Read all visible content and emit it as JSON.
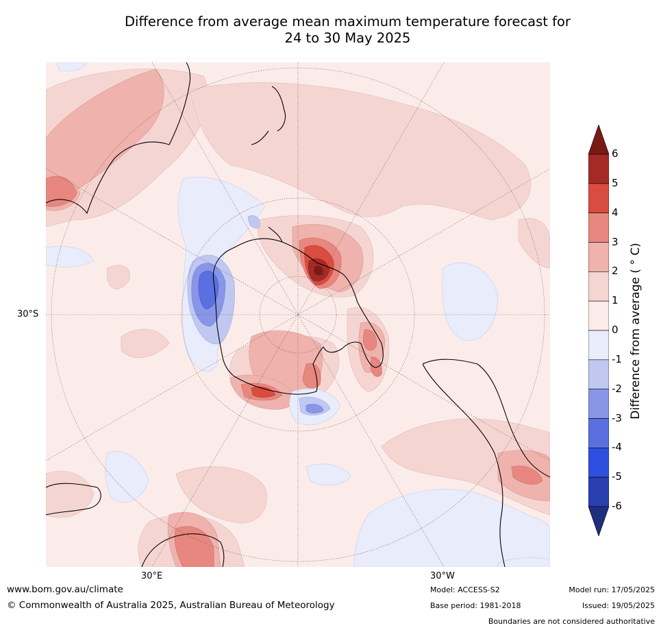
{
  "title": {
    "line1": "Difference from average mean maximum temperature forecast for",
    "line2": "24 to 30 May 2025"
  },
  "map": {
    "projection": "south polar stereographic",
    "labels": {
      "lat": "30°S",
      "lon_east": "30°E",
      "lon_west": "30°W"
    }
  },
  "colorbar": {
    "label": "Difference from average (°C)",
    "label_display": "Difference from average ( ° C)",
    "ticks": [
      "6",
      "5",
      "4",
      "3",
      "2",
      "1",
      "0",
      "-1",
      "-2",
      "-3",
      "-4",
      "-5",
      "-6"
    ],
    "levels_top_to_bottom": [
      {
        "range": ">6",
        "color": "#7a1a14"
      },
      {
        "range": "5 to 6",
        "color": "#a52a26"
      },
      {
        "range": "4 to 5",
        "color": "#d94c40"
      },
      {
        "range": "3 to 4",
        "color": "#e8877f"
      },
      {
        "range": "2 to 3",
        "color": "#efb2ac"
      },
      {
        "range": "1 to 2",
        "color": "#f5d5d2"
      },
      {
        "range": "0 to 1",
        "color": "#fbecea"
      },
      {
        "range": "-1 to 0",
        "color": "#e8ecfb"
      },
      {
        "range": "-2 to -1",
        "color": "#c0c8f2"
      },
      {
        "range": "-3 to -2",
        "color": "#8996e8"
      },
      {
        "range": "-4 to -3",
        "color": "#5a6fe0"
      },
      {
        "range": "-5 to -4",
        "color": "#2f4fe0"
      },
      {
        "range": "-6 to -5",
        "color": "#2a3fb0"
      },
      {
        "range": "<-6",
        "color": "#1f2f80"
      }
    ]
  },
  "footer": {
    "url": "www.bom.gov.au/climate",
    "copyright": "© Commonwealth of Australia 2025, Australian Bureau of Meteorology",
    "model": "Model: ACCESS-S2",
    "base_period": "Base period: 1981-2018",
    "model_run": "Model run: 17/05/2025",
    "issued": "Issued: 19/05/2025",
    "disclaimer": "Boundaries are not considered authoritative"
  }
}
